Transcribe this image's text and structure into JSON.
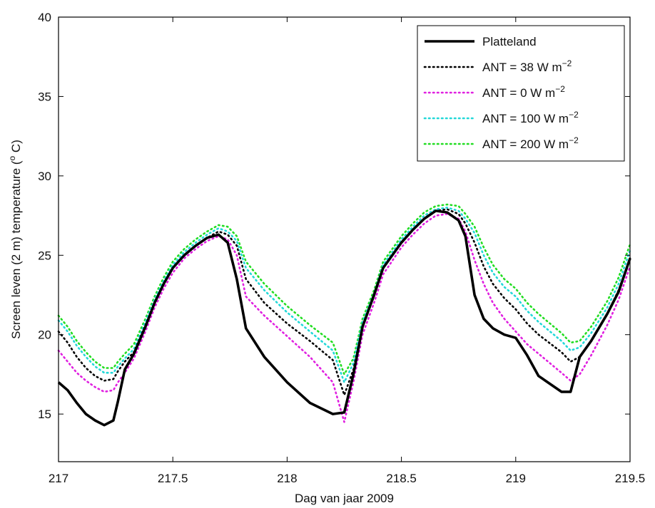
{
  "chart_data": {
    "type": "line",
    "title": "",
    "xlabel": "Dag van jaar 2009",
    "ylabel_parts": [
      "Screen leven (2 m) temperature (",
      "o",
      " C)"
    ],
    "xlim": [
      217,
      219.5
    ],
    "ylim": [
      12,
      40
    ],
    "xticks": [
      {
        "value": 217,
        "label": "217"
      },
      {
        "value": 217.5,
        "label": "217.5"
      },
      {
        "value": 218,
        "label": "218"
      },
      {
        "value": 218.5,
        "label": "218.5"
      },
      {
        "value": 219,
        "label": "219"
      },
      {
        "value": 219.5,
        "label": "219.5"
      }
    ],
    "yticks": [
      {
        "value": 15,
        "label": "15"
      },
      {
        "value": 20,
        "label": "20"
      },
      {
        "value": 25,
        "label": "25"
      },
      {
        "value": 30,
        "label": "30"
      },
      {
        "value": 35,
        "label": "35"
      },
      {
        "value": 40,
        "label": "40"
      }
    ],
    "grid": false,
    "legend_position": "top-right",
    "legend": [
      {
        "text": "Platteland",
        "sup": ""
      },
      {
        "text": "ANT = 38 W m",
        "sup": "−2"
      },
      {
        "text": "ANT = 0 W m",
        "sup": "−2"
      },
      {
        "text": "ANT = 100 W m",
        "sup": "−2"
      },
      {
        "text": "ANT = 200 W m",
        "sup": "−2"
      }
    ],
    "series": [
      {
        "name": "Platteland",
        "color": "#000000",
        "style": "solid",
        "x": [
          217.0,
          217.04,
          217.08,
          217.12,
          217.16,
          217.2,
          217.24,
          217.26,
          217.29,
          217.33,
          217.38,
          217.42,
          217.46,
          217.5,
          217.55,
          217.6,
          217.65,
          217.7,
          217.74,
          217.78,
          217.82,
          217.9,
          218.0,
          218.1,
          218.2,
          218.25,
          218.29,
          218.33,
          218.38,
          218.42,
          218.5,
          218.55,
          218.6,
          218.65,
          218.7,
          218.75,
          218.78,
          218.82,
          218.86,
          218.9,
          218.95,
          219.0,
          219.05,
          219.1,
          219.2,
          219.24,
          219.28,
          219.33,
          219.4,
          219.45,
          219.5
        ],
        "y": [
          17.0,
          16.5,
          15.7,
          15.0,
          14.6,
          14.3,
          14.6,
          15.8,
          17.8,
          18.8,
          20.5,
          22.0,
          23.2,
          24.2,
          25.0,
          25.6,
          26.1,
          26.3,
          25.8,
          23.5,
          20.4,
          18.6,
          17.0,
          15.7,
          15.0,
          15.1,
          17.5,
          20.5,
          22.5,
          24.2,
          25.8,
          26.6,
          27.3,
          27.8,
          27.7,
          27.2,
          26.2,
          22.5,
          21.0,
          20.4,
          20.0,
          19.8,
          18.7,
          17.4,
          16.4,
          16.4,
          18.6,
          19.6,
          21.3,
          22.7,
          24.8
        ]
      },
      {
        "name": "ANT = 38 W m−2",
        "color": "#000000",
        "style": "dotted",
        "x": [
          217.0,
          217.04,
          217.08,
          217.12,
          217.16,
          217.2,
          217.24,
          217.26,
          217.29,
          217.33,
          217.38,
          217.42,
          217.46,
          217.5,
          217.55,
          217.6,
          217.65,
          217.7,
          217.74,
          217.78,
          217.82,
          217.9,
          218.0,
          218.1,
          218.2,
          218.25,
          218.29,
          218.33,
          218.38,
          218.42,
          218.5,
          218.55,
          218.6,
          218.65,
          218.7,
          218.75,
          218.78,
          218.82,
          218.86,
          218.9,
          218.95,
          219.0,
          219.05,
          219.1,
          219.2,
          219.24,
          219.28,
          219.33,
          219.4,
          219.45,
          219.5
        ],
        "y": [
          20.2,
          19.5,
          18.6,
          17.9,
          17.4,
          17.1,
          17.2,
          17.7,
          18.3,
          18.9,
          20.6,
          22.0,
          23.2,
          24.2,
          25.0,
          25.6,
          26.1,
          26.5,
          26.3,
          25.6,
          23.5,
          22.0,
          20.7,
          19.6,
          18.4,
          16.2,
          17.8,
          20.5,
          22.4,
          24.2,
          25.8,
          26.6,
          27.3,
          27.8,
          27.9,
          27.6,
          27.0,
          25.8,
          24.3,
          23.2,
          22.3,
          21.6,
          20.7,
          20.0,
          18.9,
          18.3,
          18.6,
          19.6,
          21.3,
          22.8,
          24.8
        ]
      },
      {
        "name": "ANT = 0 W m−2",
        "color": "#e020e0",
        "style": "dotted",
        "x": [
          217.0,
          217.04,
          217.08,
          217.12,
          217.16,
          217.2,
          217.24,
          217.26,
          217.29,
          217.33,
          217.38,
          217.42,
          217.46,
          217.5,
          217.55,
          217.6,
          217.65,
          217.7,
          217.74,
          217.78,
          217.82,
          217.9,
          218.0,
          218.1,
          218.2,
          218.25,
          218.29,
          218.33,
          218.38,
          218.42,
          218.5,
          218.55,
          218.6,
          218.65,
          218.7,
          218.75,
          218.78,
          218.82,
          218.86,
          218.9,
          218.95,
          219.0,
          219.05,
          219.1,
          219.2,
          219.24,
          219.28,
          219.33,
          219.4,
          219.45,
          219.5
        ],
        "y": [
          19.0,
          18.3,
          17.6,
          17.1,
          16.7,
          16.4,
          16.5,
          17.0,
          17.6,
          18.5,
          20.2,
          21.7,
          22.9,
          23.9,
          24.8,
          25.4,
          25.9,
          26.2,
          26.0,
          25.0,
          22.4,
          21.2,
          19.9,
          18.6,
          17.0,
          14.5,
          17.0,
          20.0,
          22.0,
          23.8,
          25.5,
          26.3,
          27.0,
          27.5,
          27.6,
          27.3,
          26.5,
          24.7,
          23.2,
          22.0,
          21.0,
          20.2,
          19.4,
          18.8,
          17.6,
          17.1,
          17.5,
          18.7,
          20.6,
          22.2,
          24.3
        ]
      },
      {
        "name": "ANT = 100 W m−2",
        "color": "#22d8d8",
        "style": "dotted",
        "x": [
          217.0,
          217.04,
          217.08,
          217.12,
          217.16,
          217.2,
          217.24,
          217.26,
          217.29,
          217.33,
          217.38,
          217.42,
          217.46,
          217.5,
          217.55,
          217.6,
          217.65,
          217.7,
          217.74,
          217.78,
          217.82,
          217.9,
          218.0,
          218.1,
          218.2,
          218.25,
          218.29,
          218.33,
          218.38,
          218.42,
          218.5,
          218.55,
          218.6,
          218.65,
          218.7,
          218.75,
          218.78,
          218.82,
          218.86,
          218.9,
          218.95,
          219.0,
          219.05,
          219.1,
          219.2,
          219.24,
          219.28,
          219.33,
          219.4,
          219.45,
          219.5
        ],
        "y": [
          20.9,
          20.2,
          19.3,
          18.6,
          18.0,
          17.6,
          17.6,
          18.0,
          18.5,
          19.1,
          20.8,
          22.2,
          23.4,
          24.4,
          25.2,
          25.8,
          26.3,
          26.7,
          26.5,
          25.9,
          24.2,
          22.8,
          21.4,
          20.2,
          19.0,
          17.0,
          18.2,
          20.8,
          22.6,
          24.4,
          26.0,
          26.8,
          27.5,
          27.9,
          28.0,
          27.8,
          27.3,
          26.4,
          25.0,
          23.9,
          23.0,
          22.4,
          21.5,
          20.8,
          19.6,
          19.0,
          19.2,
          20.1,
          21.7,
          23.2,
          25.3
        ]
      },
      {
        "name": "ANT = 200 W m−2",
        "color": "#22dd22",
        "style": "dotted",
        "x": [
          217.0,
          217.04,
          217.08,
          217.12,
          217.16,
          217.2,
          217.24,
          217.26,
          217.29,
          217.33,
          217.38,
          217.42,
          217.46,
          217.5,
          217.55,
          217.6,
          217.65,
          217.7,
          217.74,
          217.78,
          217.82,
          217.9,
          218.0,
          218.1,
          218.2,
          218.25,
          218.29,
          218.33,
          218.38,
          218.42,
          218.5,
          218.55,
          218.6,
          218.65,
          218.7,
          218.75,
          218.78,
          218.82,
          218.86,
          218.9,
          218.95,
          219.0,
          219.05,
          219.1,
          219.2,
          219.24,
          219.28,
          219.33,
          219.4,
          219.45,
          219.5
        ],
        "y": [
          21.2,
          20.5,
          19.6,
          18.9,
          18.3,
          17.9,
          17.9,
          18.3,
          18.8,
          19.4,
          21.0,
          22.4,
          23.6,
          24.6,
          25.4,
          26.0,
          26.5,
          26.9,
          26.8,
          26.2,
          24.6,
          23.2,
          21.8,
          20.6,
          19.5,
          17.5,
          18.5,
          21.0,
          22.8,
          24.6,
          26.2,
          27.0,
          27.7,
          28.1,
          28.2,
          28.1,
          27.6,
          26.8,
          25.5,
          24.4,
          23.5,
          22.9,
          22.0,
          21.3,
          20.1,
          19.5,
          19.6,
          20.5,
          22.1,
          23.6,
          25.7
        ]
      }
    ]
  }
}
